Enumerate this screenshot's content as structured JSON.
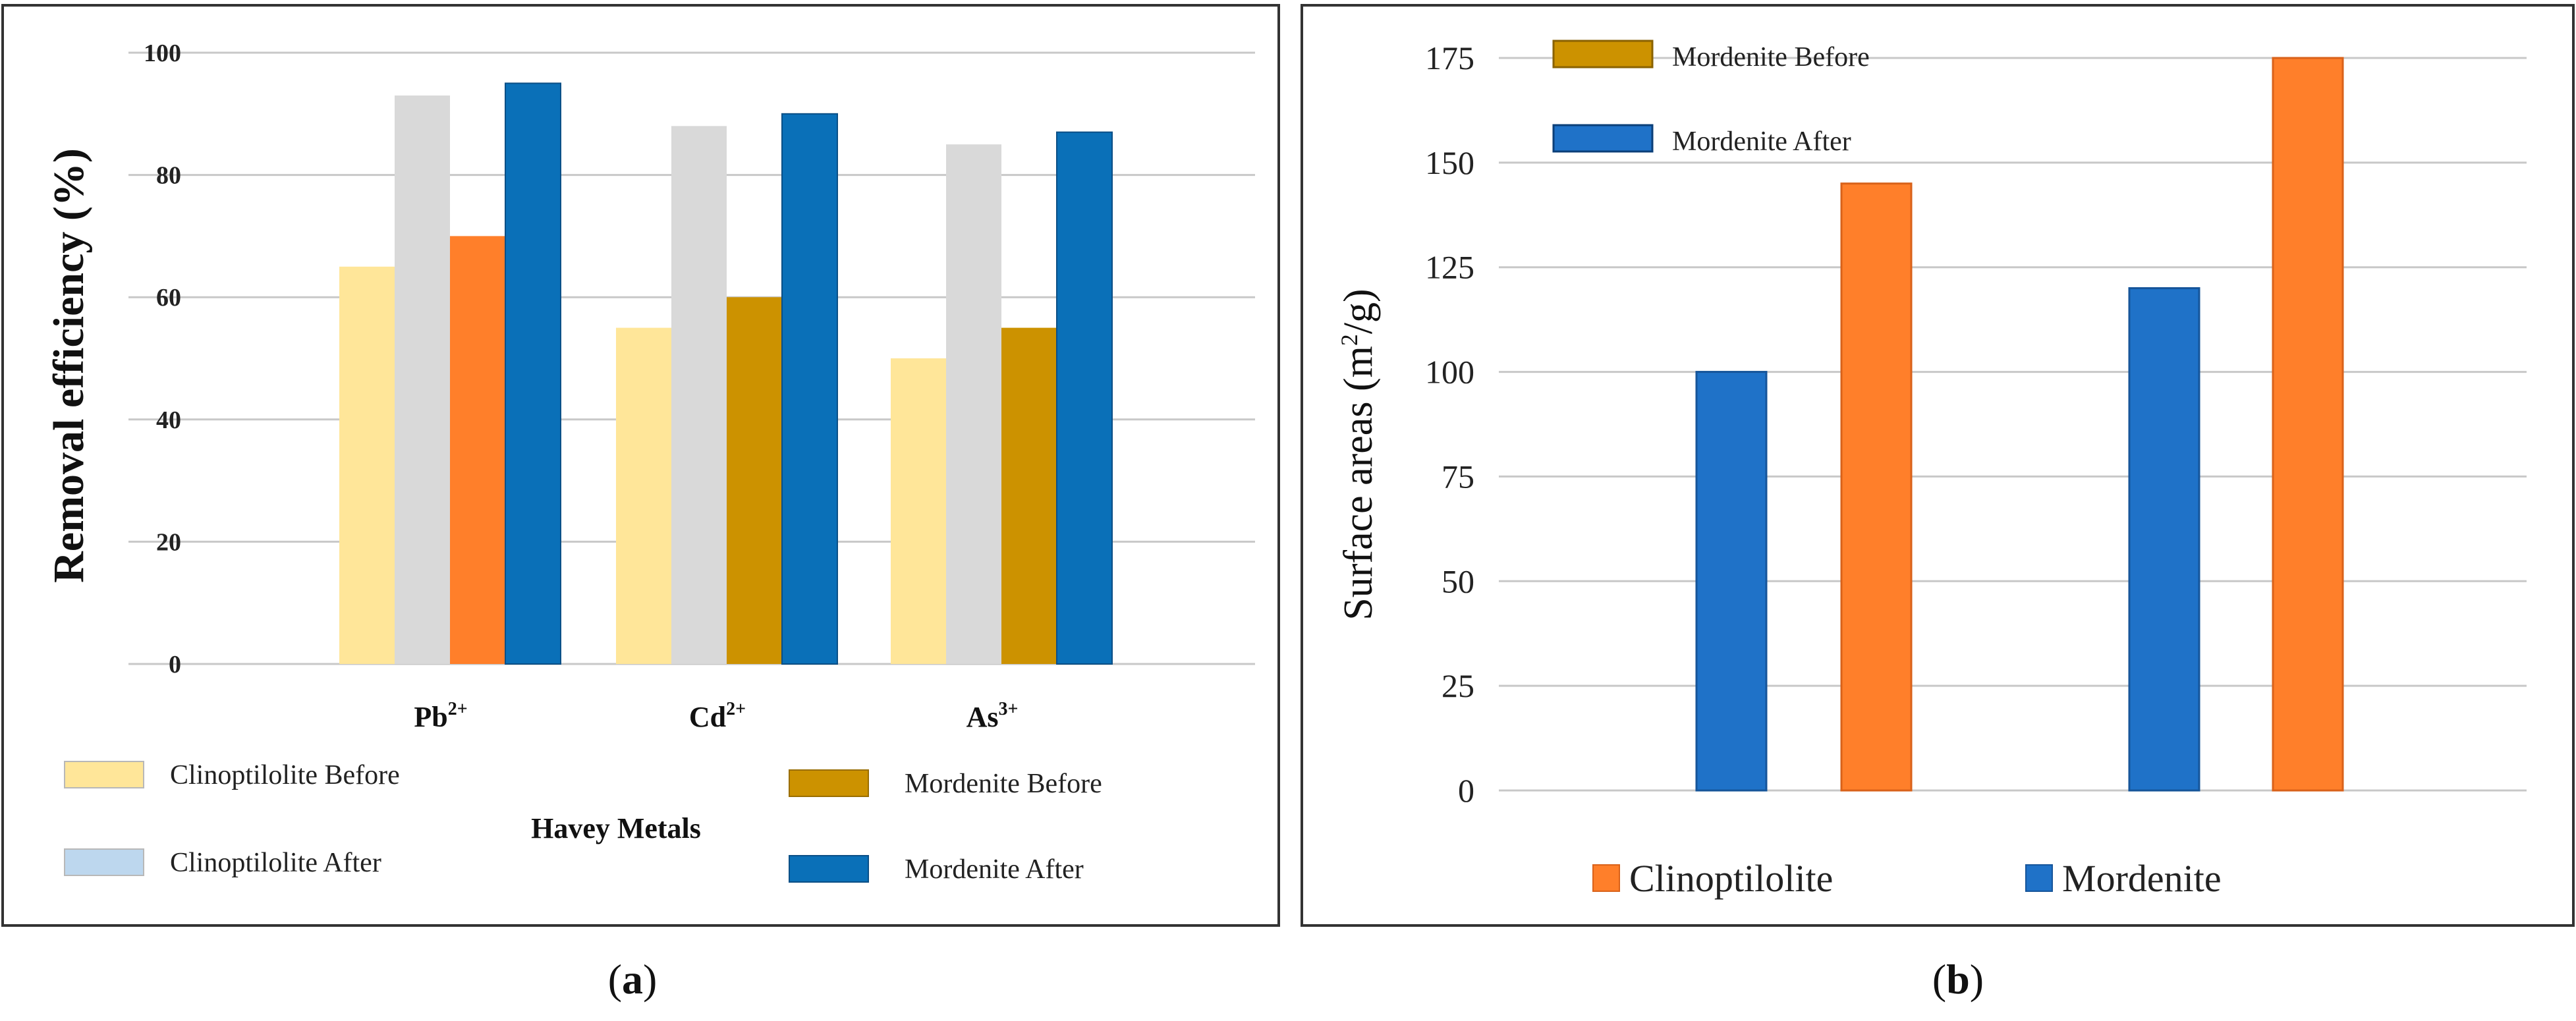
{
  "chart_data": [
    {
      "type": "bar",
      "panel_label": "a",
      "categories": [
        {
          "base": "Pb",
          "sup": "2+"
        },
        {
          "base": "Cd",
          "sup": "2+"
        },
        {
          "base": "As",
          "sup": "3+"
        }
      ],
      "series": [
        {
          "name": "Clinoptilolite Before",
          "values": [
            65,
            55,
            50
          ],
          "color": "#FFE699",
          "legend_color": "#FFE699"
        },
        {
          "name": "Clinoptilolite After",
          "values": [
            93,
            88,
            85
          ],
          "color": "#D9D9D9",
          "legend_color": "#BDD7EE"
        },
        {
          "name": "Mordenite Before",
          "values": [
            70,
            60,
            55
          ],
          "color": "#CC9200",
          "legend_color": "#CC9200"
        },
        {
          "name": "Mordenite After",
          "values": [
            95,
            90,
            87
          ],
          "color": "#0A70B8",
          "legend_color": "#0A70B8"
        }
      ],
      "bar_colors_override": {
        "0": {
          "2": "#FF7F2A"
        }
      },
      "ylabel": "Removal efficiency (%)",
      "xlabel": "Havey Metals",
      "ylim": [
        0,
        100
      ],
      "yticks": [
        0,
        20,
        40,
        60,
        80,
        100
      ],
      "grid": true,
      "legend_position": "bottom"
    },
    {
      "type": "bar",
      "panel_label": "b",
      "groups": 2,
      "bars": [
        {
          "series": "Mordenite",
          "value": 100,
          "color": "#1F72C8"
        },
        {
          "series": "Clinoptilolite",
          "value": 145,
          "color": "#FF7F2A"
        },
        {
          "series": "Mordenite",
          "value": 120,
          "color": "#1F72C8"
        },
        {
          "series": "Clinoptilolite",
          "value": 175,
          "color": "#FF7F2A"
        }
      ],
      "ylabel_pre": "Surface areas (m",
      "ylabel_sup": "2",
      "ylabel_post": "/g)",
      "ylim": [
        0,
        175
      ],
      "yticks": [
        0,
        25,
        50,
        75,
        100,
        125,
        150,
        175
      ],
      "grid": true,
      "legend_top": [
        {
          "name": "Mordenite Before",
          "color": "#CC9200"
        },
        {
          "name": "Mordenite After",
          "color": "#1F72C8"
        }
      ],
      "legend_bottom": [
        {
          "name": "Clinoptilolite",
          "color": "#FF7F2A"
        },
        {
          "name": "Mordenite",
          "color": "#1F72C8"
        }
      ]
    }
  ]
}
